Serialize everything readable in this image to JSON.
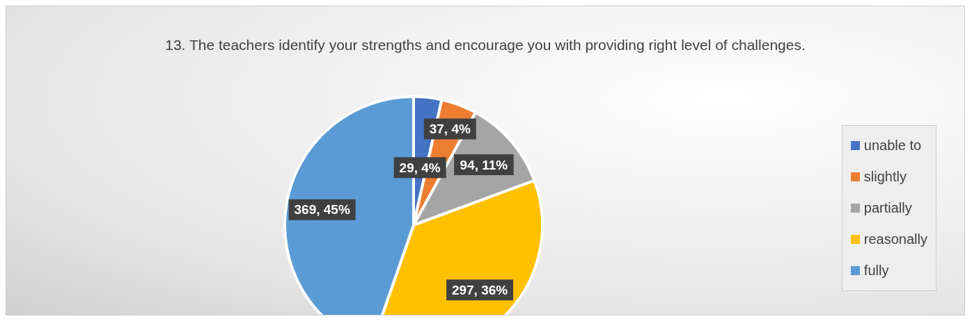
{
  "chart_data": {
    "type": "pie",
    "title": "13. The teachers identify your strengths and encourage you with providing right level of challenges.",
    "categories": [
      "unable to",
      "slightly",
      "partially",
      "reasonally",
      "fully"
    ],
    "values": [
      29,
      37,
      94,
      297,
      369
    ],
    "value_labels": [
      "29, 4%",
      "37, 4%",
      "94, 11%",
      "297, 36%",
      "369, 45%"
    ],
    "colors": [
      "#4472c4",
      "#ed7d31",
      "#a5a5a5",
      "#ffc000",
      "#5b9bd5"
    ],
    "legend": "right"
  }
}
